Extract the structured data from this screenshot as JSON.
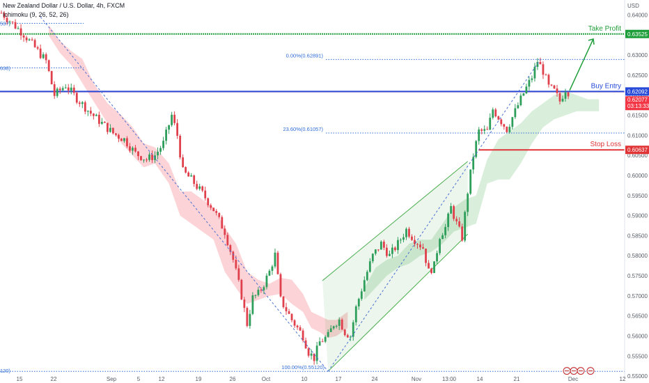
{
  "header": {
    "symbol": "New Zealand Dollar / U.S. Dollar, 4h, FXCM",
    "indicator": "Ichimoku (9, 26, 52, 26)",
    "currency": "USD"
  },
  "chart_data": {
    "type": "candlestick",
    "ylim": [
      0.5495,
      0.6425
    ],
    "y_ticks": [
      "0.64000",
      "0.63500",
      "0.63000",
      "0.62500",
      "0.62000",
      "0.61500",
      "0.61000",
      "0.60500",
      "0.60000",
      "0.59500",
      "0.59000",
      "0.58500",
      "0.58000",
      "0.57500",
      "0.57000",
      "0.56500",
      "0.56000",
      "0.55500",
      "0.55000"
    ],
    "x_ticks": [
      "15",
      "22",
      "Sep",
      "5",
      "12",
      "19",
      "26",
      "Oct",
      "10",
      "17",
      "24",
      "Nov",
      "13:00",
      "14",
      "21",
      "Dec",
      "12"
    ],
    "levels": [
      {
        "name": "Take Profit",
        "value": 0.63525,
        "label": "0.63525",
        "color": "#1e9e3a"
      },
      {
        "name": "Buy Entry",
        "value": 0.62092,
        "label": "0.62092",
        "color": "#2649d8"
      },
      {
        "name": "Stop Loss",
        "value": 0.60637,
        "label": "0.60637",
        "color": "#e03436"
      }
    ],
    "current_price": {
      "value": 0.62077,
      "label": "0.62077",
      "countdown": "03:13:33",
      "color": "#f23645"
    },
    "fibonacci": [
      {
        "label": "0.00%(0.62891)",
        "value": 0.62891
      },
      {
        "label": "23.60%(0.61057)",
        "value": 0.61057
      },
      {
        "label": "100.00%(0.55120)",
        "value": 0.5512
      }
    ],
    "left_cut_labels": [
      {
        "label": "537)",
        "value": 0.6379
      },
      {
        "label": "638)",
        "value": 0.6268
      },
      {
        "label": "120)",
        "value": 0.5514
      }
    ],
    "price_path": [
      [
        0,
        0.6405
      ],
      [
        8,
        0.6352
      ],
      [
        16,
        0.6285
      ],
      [
        19,
        0.62
      ],
      [
        23,
        0.6225
      ],
      [
        27,
        0.6192
      ],
      [
        32,
        0.6155
      ],
      [
        36,
        0.613
      ],
      [
        40,
        0.6105
      ],
      [
        44,
        0.609
      ],
      [
        48,
        0.6055
      ],
      [
        52,
        0.604
      ],
      [
        55,
        0.605
      ],
      [
        58,
        0.608
      ],
      [
        61,
        0.615
      ],
      [
        63,
        0.61
      ],
      [
        65,
        0.601
      ],
      [
        68,
        0.599
      ],
      [
        72,
        0.5955
      ],
      [
        76,
        0.5915
      ],
      [
        80,
        0.586
      ],
      [
        83,
        0.579
      ],
      [
        86,
        0.57
      ],
      [
        88,
        0.563
      ],
      [
        90,
        0.5695
      ],
      [
        92,
        0.5705
      ],
      [
        94,
        0.573
      ],
      [
        96,
        0.576
      ],
      [
        98,
        0.5802
      ],
      [
        100,
        0.569
      ],
      [
        104,
        0.564
      ],
      [
        108,
        0.56
      ],
      [
        110,
        0.556
      ],
      [
        112,
        0.5545
      ],
      [
        114,
        0.5585
      ],
      [
        117,
        0.56
      ],
      [
        119,
        0.563
      ],
      [
        121,
        0.564
      ],
      [
        123,
        0.561
      ],
      [
        125,
        0.56
      ],
      [
        127,
        0.567
      ],
      [
        130,
        0.574
      ],
      [
        133,
        0.58
      ],
      [
        136,
        0.583
      ],
      [
        139,
        0.58
      ],
      [
        142,
        0.583
      ],
      [
        145,
        0.5865
      ],
      [
        148,
        0.584
      ],
      [
        151,
        0.582
      ],
      [
        153,
        0.576
      ],
      [
        155,
        0.5775
      ],
      [
        157,
        0.585
      ],
      [
        159,
        0.587
      ],
      [
        161,
        0.592
      ],
      [
        163,
        0.588
      ],
      [
        165,
        0.5845
      ],
      [
        167,
        0.596
      ],
      [
        169,
        0.605
      ],
      [
        171,
        0.611
      ],
      [
        174,
        0.611
      ],
      [
        176,
        0.6165
      ],
      [
        178,
        0.6145
      ],
      [
        181,
        0.6115
      ],
      [
        184,
        0.616
      ],
      [
        187,
        0.6205
      ],
      [
        190,
        0.6245
      ],
      [
        192,
        0.6285
      ],
      [
        194,
        0.626
      ],
      [
        196,
        0.622
      ],
      [
        198,
        0.621
      ],
      [
        200,
        0.6185
      ],
      [
        202,
        0.6215
      ],
      [
        203,
        0.6208
      ]
    ],
    "cloud_bear": [
      [
        17,
        0.6375,
        0.6348
      ],
      [
        21,
        0.6335,
        0.6305
      ],
      [
        25,
        0.631,
        0.6275
      ],
      [
        29,
        0.629,
        0.623
      ],
      [
        33,
        0.623,
        0.6185
      ],
      [
        38,
        0.618,
        0.613
      ],
      [
        43,
        0.615,
        0.608
      ],
      [
        47,
        0.612,
        0.605
      ],
      [
        51,
        0.608,
        0.602
      ],
      [
        55,
        0.607,
        0.603
      ],
      [
        60,
        0.603,
        0.598
      ],
      [
        64,
        0.596,
        0.59
      ],
      [
        68,
        0.596,
        0.588
      ],
      [
        72,
        0.594,
        0.586
      ],
      [
        76,
        0.592,
        0.584
      ],
      [
        80,
        0.587,
        0.576
      ],
      [
        84,
        0.583,
        0.572
      ],
      [
        88,
        0.576,
        0.568
      ],
      [
        92,
        0.574,
        0.569
      ],
      [
        96,
        0.573,
        0.57
      ],
      [
        100,
        0.5745,
        0.5705
      ],
      [
        104,
        0.574,
        0.568
      ],
      [
        108,
        0.5705,
        0.566
      ],
      [
        111,
        0.566,
        0.562
      ],
      [
        114,
        0.565,
        0.561
      ],
      [
        117,
        0.564,
        0.5595
      ],
      [
        120,
        0.564,
        0.56
      ],
      [
        124,
        0.566,
        0.562
      ]
    ],
    "cloud_bull": [
      [
        130,
        0.572,
        0.569
      ],
      [
        134,
        0.577,
        0.572
      ],
      [
        138,
        0.579,
        0.575
      ],
      [
        142,
        0.58,
        0.577
      ],
      [
        146,
        0.583,
        0.578
      ],
      [
        150,
        0.584,
        0.58
      ],
      [
        154,
        0.584,
        0.581
      ],
      [
        158,
        0.588,
        0.583
      ],
      [
        162,
        0.592,
        0.586
      ],
      [
        166,
        0.594,
        0.587
      ],
      [
        170,
        0.595,
        0.588
      ],
      [
        174,
        0.604,
        0.598
      ],
      [
        178,
        0.609,
        0.599
      ],
      [
        182,
        0.611,
        0.599
      ],
      [
        186,
        0.613,
        0.603
      ],
      [
        190,
        0.616,
        0.608
      ],
      [
        194,
        0.618,
        0.612
      ],
      [
        198,
        0.62,
        0.614
      ],
      [
        202,
        0.621,
        0.615
      ],
      [
        206,
        0.62,
        0.616
      ],
      [
        210,
        0.619,
        0.616
      ],
      [
        214,
        0.619,
        0.616
      ]
    ]
  }
}
